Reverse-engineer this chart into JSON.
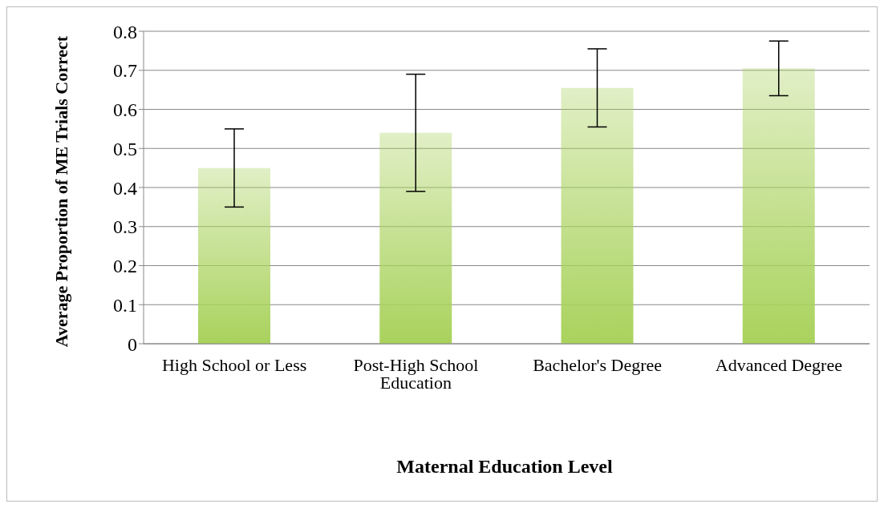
{
  "chart_data": {
    "type": "bar",
    "xlabel": "Maternal Education Level",
    "ylabel": "Average Proportion of ME Trials Correct",
    "categories": [
      "High School or Less",
      "Post-High School Education",
      "Bachelor's Degree",
      "Advanced Degree"
    ],
    "values": [
      0.45,
      0.54,
      0.655,
      0.705
    ],
    "errors": [
      0.1,
      0.15,
      0.1,
      0.07
    ],
    "color": "#a9d25c",
    "ylim": [
      0,
      0.8
    ],
    "yticks": [
      0,
      0.1,
      0.2,
      0.3,
      0.4,
      0.5,
      0.6,
      0.7,
      0.8
    ],
    "grid": "y"
  }
}
